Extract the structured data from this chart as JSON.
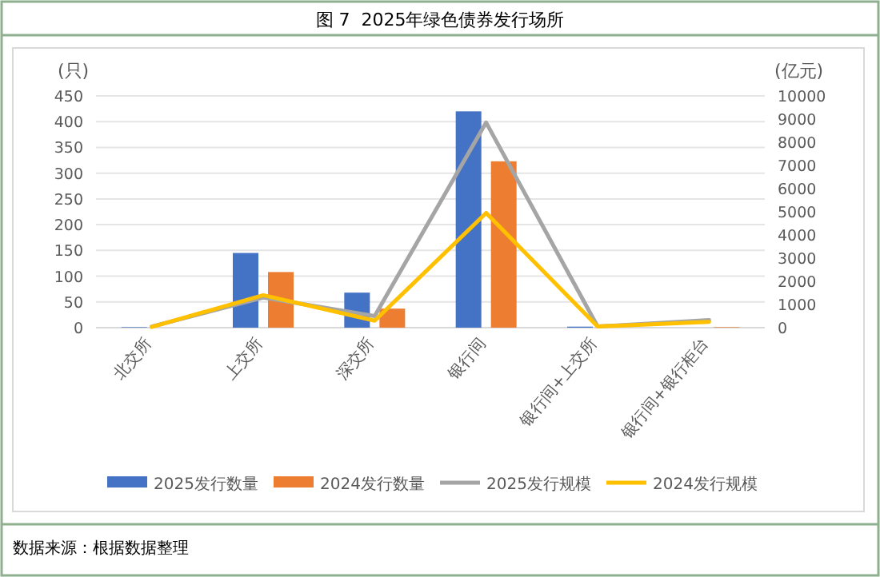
{
  "chart_data": {
    "type": "bar",
    "title": "图 7  2025年绿色债券发行场所",
    "ylabel": "(只)",
    "y2label": "(亿元)",
    "categories": [
      "北交所",
      "上交所",
      "深交所",
      "银行间",
      "银行间+上交所",
      "银行间+银行柜台"
    ],
    "series": [
      {
        "name": "2025发行数量",
        "color": "#4472c4",
        "values": [
          1,
          145,
          68,
          420,
          2,
          0
        ]
      },
      {
        "name": "2024发行数量",
        "color": "#ed7d31",
        "values": [
          0,
          108,
          37,
          323,
          0,
          1
        ]
      },
      {
        "name": "2025发行规模",
        "type": "line",
        "axis": "y2",
        "color": "#a5a5a5",
        "values": [
          50,
          1300,
          500,
          8850,
          50,
          330
        ]
      },
      {
        "name": "2024发行规模",
        "type": "line",
        "axis": "y2",
        "color": "#ffc000",
        "values": [
          30,
          1400,
          300,
          4950,
          50,
          250
        ]
      }
    ],
    "ylim": [
      0,
      450
    ],
    "yticks": [
      0,
      50,
      100,
      150,
      200,
      250,
      300,
      350,
      400,
      450
    ],
    "y2lim": [
      0,
      10000
    ],
    "y2ticks": [
      0,
      1000,
      2000,
      3000,
      4000,
      5000,
      6000,
      7000,
      8000,
      9000,
      10000
    ],
    "grid": "y",
    "legend": "bottom",
    "annotations": [
      "数据来源：根据数据整理"
    ]
  }
}
